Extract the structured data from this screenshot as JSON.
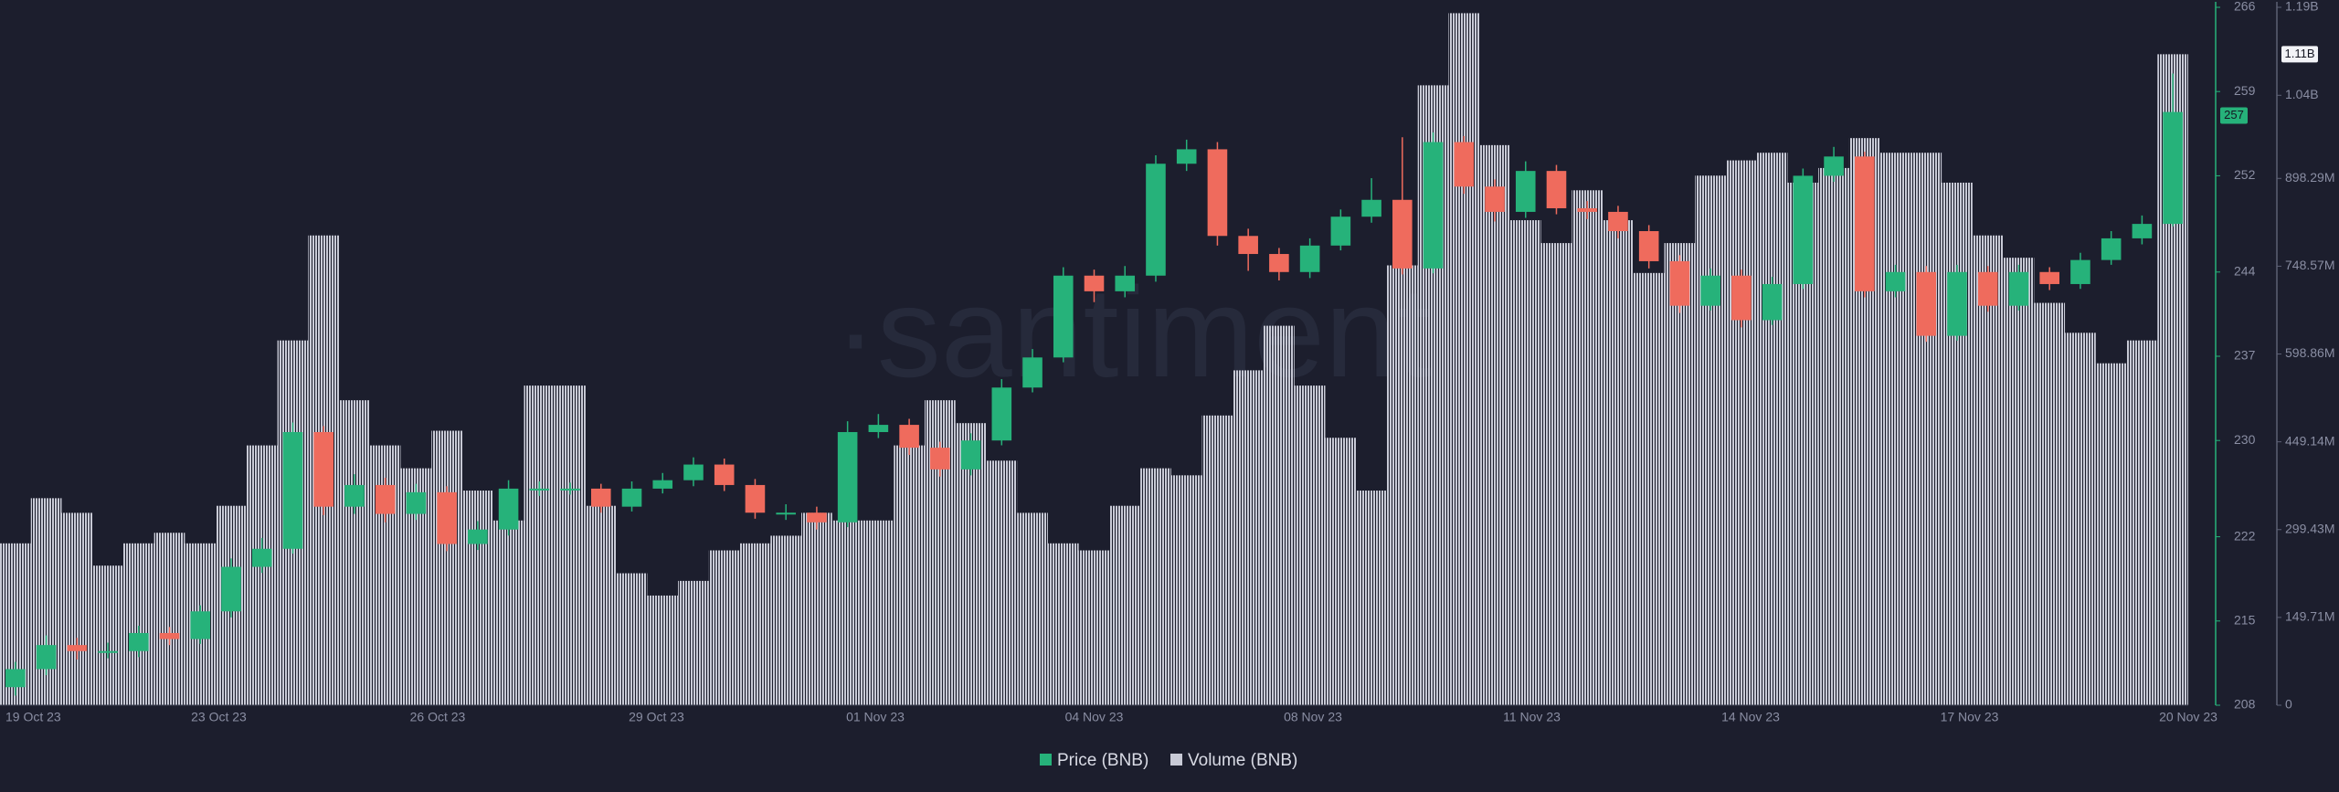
{
  "chart_data": {
    "type": "candlestick",
    "watermark": "·santiment",
    "xticks": [
      "19 Oct 23",
      "23 Oct 23",
      "26 Oct 23",
      "29 Oct 23",
      "01 Nov 23",
      "04 Nov 23",
      "08 Nov 23",
      "11 Nov 23",
      "14 Nov 23",
      "17 Nov 23",
      "20 Nov 23"
    ],
    "ylim": [
      208,
      266
    ],
    "yticks": [
      208,
      215,
      222,
      230,
      237,
      244,
      252,
      259,
      266
    ],
    "y2lim": [
      0,
      1190000000
    ],
    "y2ticks": [
      0,
      {
        "value": 149710000,
        "label": "149.71M"
      },
      {
        "value": 299430000,
        "label": "299.43M"
      },
      {
        "value": 449140000,
        "label": "449.14M"
      },
      {
        "value": 598860000,
        "label": "598.86M"
      },
      {
        "value": 748570000,
        "label": "748.57M"
      },
      {
        "value": 898290000,
        "label": "898.29M"
      },
      {
        "value": 1040000000,
        "label": "1.04B"
      },
      {
        "value": 1190000000,
        "label": "1.19B"
      }
    ],
    "series": [
      {
        "name": "Price (BNB)",
        "color": "#26b27a",
        "down_color": "#ef6b5d",
        "open": [
          209.5,
          211,
          213,
          212.5,
          212.5,
          214,
          213.5,
          215.8,
          219.5,
          221,
          230.7,
          224.5,
          226.3,
          223.9,
          225.7,
          221.4,
          222.6,
          226,
          226,
          226,
          224.5,
          226,
          226.7,
          228,
          226.3,
          224,
          224,
          223.2,
          230.7,
          231.3,
          229.4,
          227.6,
          230,
          234.4,
          236.9,
          243.7,
          242.4,
          243.7,
          253,
          254.2,
          247,
          245.5,
          244,
          246.2,
          248.6,
          250,
          244.3,
          254.8,
          251.1,
          249,
          252.4,
          249.3,
          249,
          247.4,
          244.9,
          241.2,
          243.7,
          240,
          243,
          252,
          253.6,
          242.4,
          244,
          238.7,
          244,
          241.2,
          244,
          243,
          245,
          246.8,
          248
        ],
        "high": [
          211.6,
          213.8,
          213.6,
          213.2,
          214.6,
          214.5,
          216.3,
          220.2,
          221.9,
          231.5,
          231.2,
          227.2,
          226.9,
          226.4,
          226.2,
          223.3,
          226.7,
          226.6,
          226.5,
          226.4,
          226.6,
          227.3,
          228.6,
          228.5,
          226.8,
          224.7,
          224.5,
          231.6,
          232.2,
          231.8,
          229.9,
          230.6,
          235.1,
          237.6,
          244.4,
          244.2,
          244.5,
          253.7,
          255,
          254.8,
          247.6,
          246,
          246.8,
          249.2,
          251.8,
          255.2,
          255.6,
          255.3,
          251.7,
          253.2,
          252.9,
          249.9,
          249.5,
          247.9,
          245.4,
          244.3,
          244.2,
          243.6,
          252.6,
          254.4,
          254,
          244.6,
          244.5,
          244.6,
          244.5,
          244.6,
          244.4,
          245.6,
          247.4,
          248.7,
          260.5
        ],
        "low": [
          208.8,
          210.5,
          211.8,
          211.9,
          212,
          213,
          213.1,
          215.3,
          219,
          220.6,
          223.8,
          223.9,
          223.2,
          223.4,
          220.8,
          220.9,
          222.1,
          225.4,
          225.5,
          224,
          224.1,
          225.6,
          226.2,
          225.8,
          223.5,
          223.4,
          222.6,
          222.8,
          230.2,
          228.8,
          227,
          227.1,
          229.6,
          234,
          236.5,
          241.5,
          241.9,
          243.2,
          252.4,
          246.2,
          244.1,
          243.3,
          243.5,
          245.8,
          248.1,
          243.8,
          243.9,
          250.5,
          248.2,
          248.5,
          248.8,
          248.4,
          246.8,
          244.3,
          240.6,
          240.8,
          239.4,
          239.6,
          242.6,
          251.5,
          241.9,
          241.9,
          238.2,
          238.3,
          240.7,
          240.8,
          242.5,
          242.6,
          244.6,
          246.3,
          247.8
        ],
        "close": [
          211,
          213,
          212.5,
          212.5,
          214,
          213.5,
          215.8,
          219.5,
          221,
          230.7,
          224.5,
          226.3,
          223.9,
          225.7,
          221.4,
          222.6,
          226,
          226,
          226,
          224.5,
          226,
          226.7,
          228,
          226.3,
          224,
          224,
          223.2,
          230.7,
          231.3,
          229.4,
          227.6,
          230,
          234.4,
          236.9,
          243.7,
          242.4,
          243.7,
          253,
          254.2,
          247,
          245.5,
          244,
          246.2,
          248.6,
          250,
          244.3,
          254.8,
          251.1,
          249,
          252.4,
          249.3,
          249,
          247.4,
          244.9,
          241.2,
          243.7,
          240,
          243,
          252,
          253.6,
          242.4,
          244,
          238.7,
          244,
          241.2,
          244,
          243,
          245,
          246.8,
          248,
          257.3
        ]
      },
      {
        "name": "Volume (BNB)",
        "color": "#c8cad6",
        "axis": "y2",
        "values": [
          276000000,
          353000000,
          328000000,
          238000000,
          276000000,
          294000000,
          276000000,
          340000000,
          443000000,
          622000000,
          801000000,
          520000000,
          443000000,
          404000000,
          468000000,
          366000000,
          315000000,
          545000000,
          545000000,
          340000000,
          225000000,
          187000000,
          212000000,
          264000000,
          276000000,
          289000000,
          328000000,
          315000000,
          315000000,
          443000000,
          520000000,
          481000000,
          417000000,
          328000000,
          276000000,
          264000000,
          340000000,
          404000000,
          392000000,
          494000000,
          571000000,
          647000000,
          545000000,
          456000000,
          366000000,
          750000000,
          1057000000,
          1180000000,
          955000000,
          827000000,
          788000000,
          878000000,
          827000000,
          737000000,
          788000000,
          903000000,
          929000000,
          942000000,
          891000000,
          916000000,
          967000000,
          942000000,
          942000000,
          891000000,
          801000000,
          763000000,
          686000000,
          635000000,
          583000000,
          622000000,
          1110000000
        ]
      }
    ],
    "annotations": [
      {
        "value": 257,
        "label": "257",
        "axis": "y",
        "color": "#26b27a"
      },
      {
        "value": 1110000000,
        "label": "1.11B",
        "axis": "y2",
        "color": "#f2f3f7"
      }
    ]
  }
}
